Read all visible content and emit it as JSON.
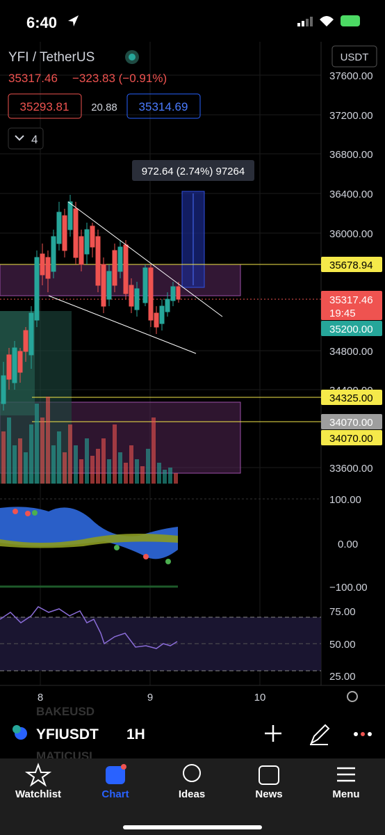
{
  "status_bar": {
    "time": "6:40"
  },
  "header": {
    "symbol": "YFI / TetherUS",
    "last": "35317.46",
    "change": "−323.83 (−0.91%)",
    "bid": "35293.81",
    "spread": "20.88",
    "ask": "35314.69",
    "indicators_count": "4",
    "currency": "USDT"
  },
  "measure_label": "972.64 (2.74%) 97264",
  "price_axis": [
    "37600.00",
    "37200.00",
    "36800.00",
    "36400.00",
    "36000.00",
    "34800.00",
    "34400.00",
    "33600.00"
  ],
  "price_labels": {
    "level_high": "35678.94",
    "last": "35317.46",
    "countdown": "19:45",
    "level_mid": "35200.00",
    "level_low": "34325.00",
    "gray": "34070.00",
    "level_bottom": "34070.00"
  },
  "oscillator_axis": [
    "100.00",
    "0.00",
    "−100.00"
  ],
  "rsi_axis": [
    "75.00",
    "50.00",
    "25.00"
  ],
  "time_axis": [
    "8",
    "9",
    "10"
  ],
  "symbol_bar": {
    "symbol": "YFIUSDT",
    "interval": "1H",
    "behind_above": "BAKEUSD",
    "behind_below": "MATICUSI"
  },
  "tabs": [
    "Watchlist",
    "Chart",
    "Ideas",
    "News",
    "Menu"
  ]
}
